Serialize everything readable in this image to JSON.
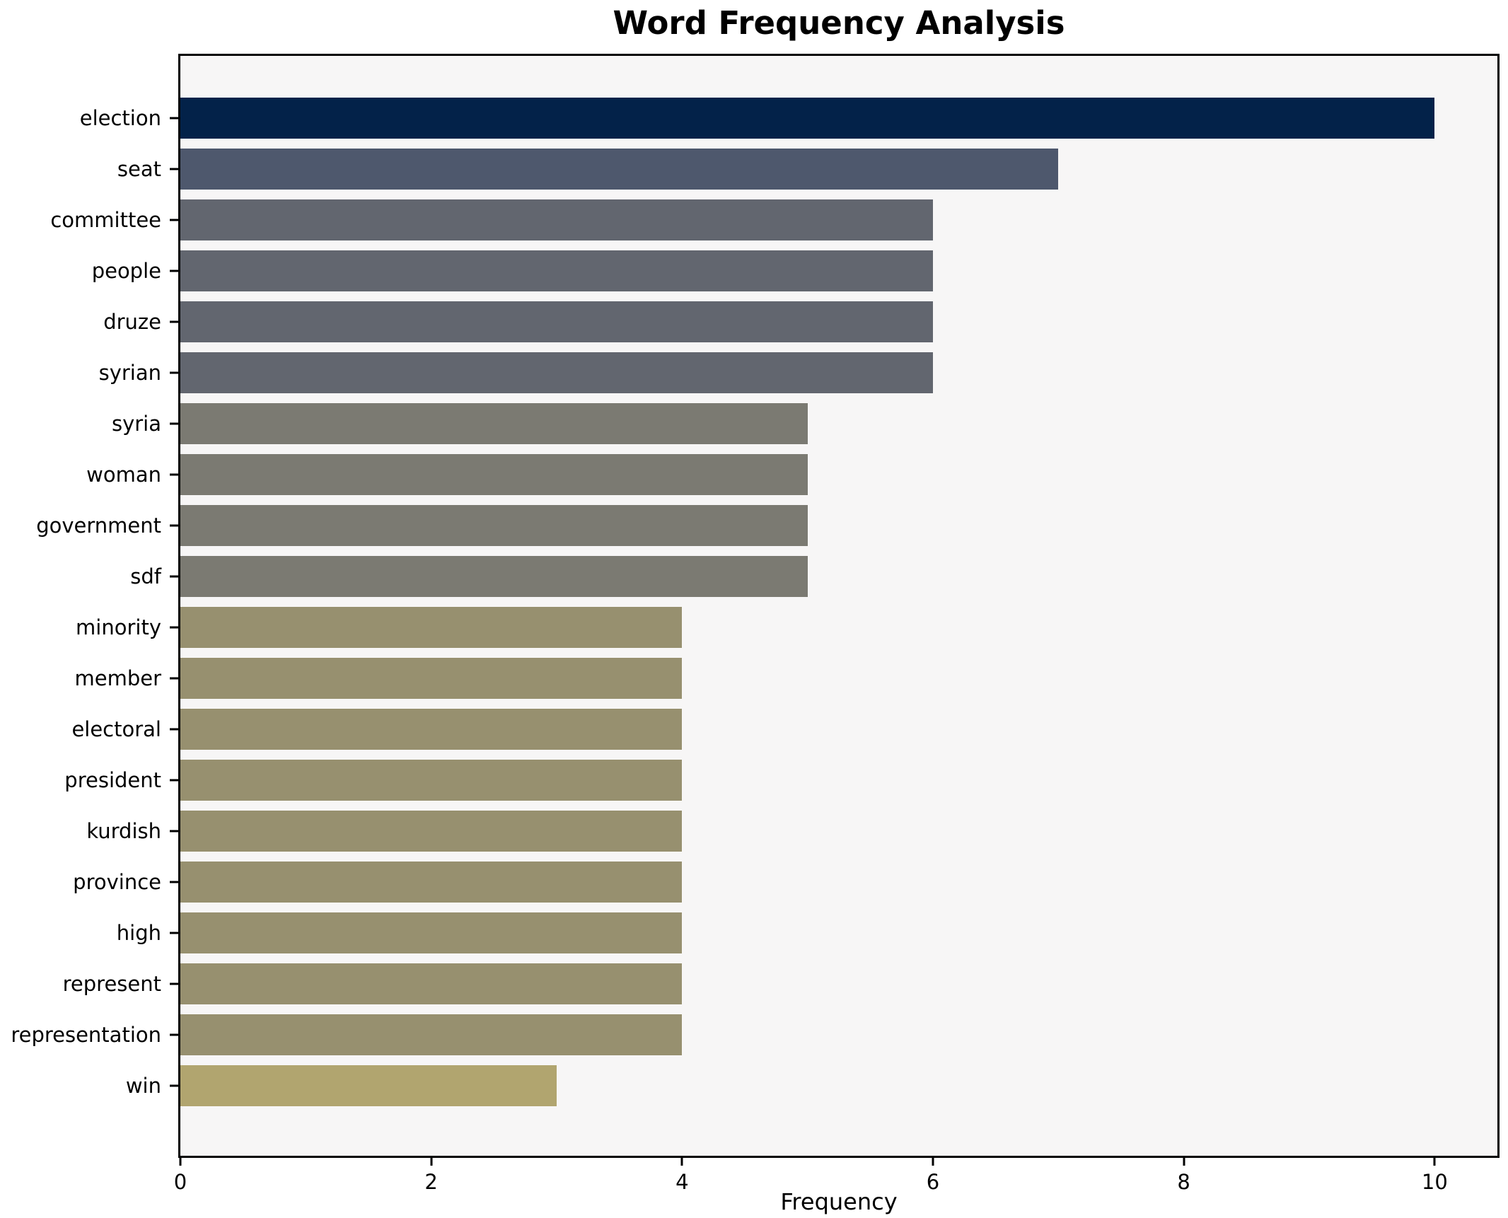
{
  "title": "Word Frequency Analysis",
  "chart_data": {
    "type": "bar",
    "orientation": "horizontal",
    "title": "Word Frequency Analysis",
    "xlabel": "Frequency",
    "ylabel": "",
    "categories": [
      "election",
      "seat",
      "committee",
      "people",
      "druze",
      "syrian",
      "syria",
      "woman",
      "government",
      "sdf",
      "minority",
      "member",
      "electoral",
      "president",
      "kurdish",
      "province",
      "high",
      "represent",
      "representation",
      "win"
    ],
    "values": [
      10,
      7,
      6,
      6,
      6,
      6,
      5,
      5,
      5,
      5,
      4,
      4,
      4,
      4,
      4,
      4,
      4,
      4,
      4,
      3
    ],
    "bar_colors": [
      "#032249",
      "#4e586d",
      "#62666f",
      "#62666f",
      "#62666f",
      "#62666f",
      "#7b7a72",
      "#7b7a72",
      "#7b7a72",
      "#7b7a72",
      "#97906f",
      "#97906f",
      "#97906f",
      "#97906f",
      "#97906f",
      "#97906f",
      "#97906f",
      "#97906f",
      "#97906f",
      "#b1a56f"
    ],
    "xticks": [
      0,
      2,
      4,
      6,
      8,
      10
    ],
    "xlim": [
      0,
      10.5
    ],
    "grid": false,
    "legend": "none",
    "plot_background": "#f7f6f6",
    "figure_background": "#ffffff",
    "spine_color": "#000000"
  }
}
